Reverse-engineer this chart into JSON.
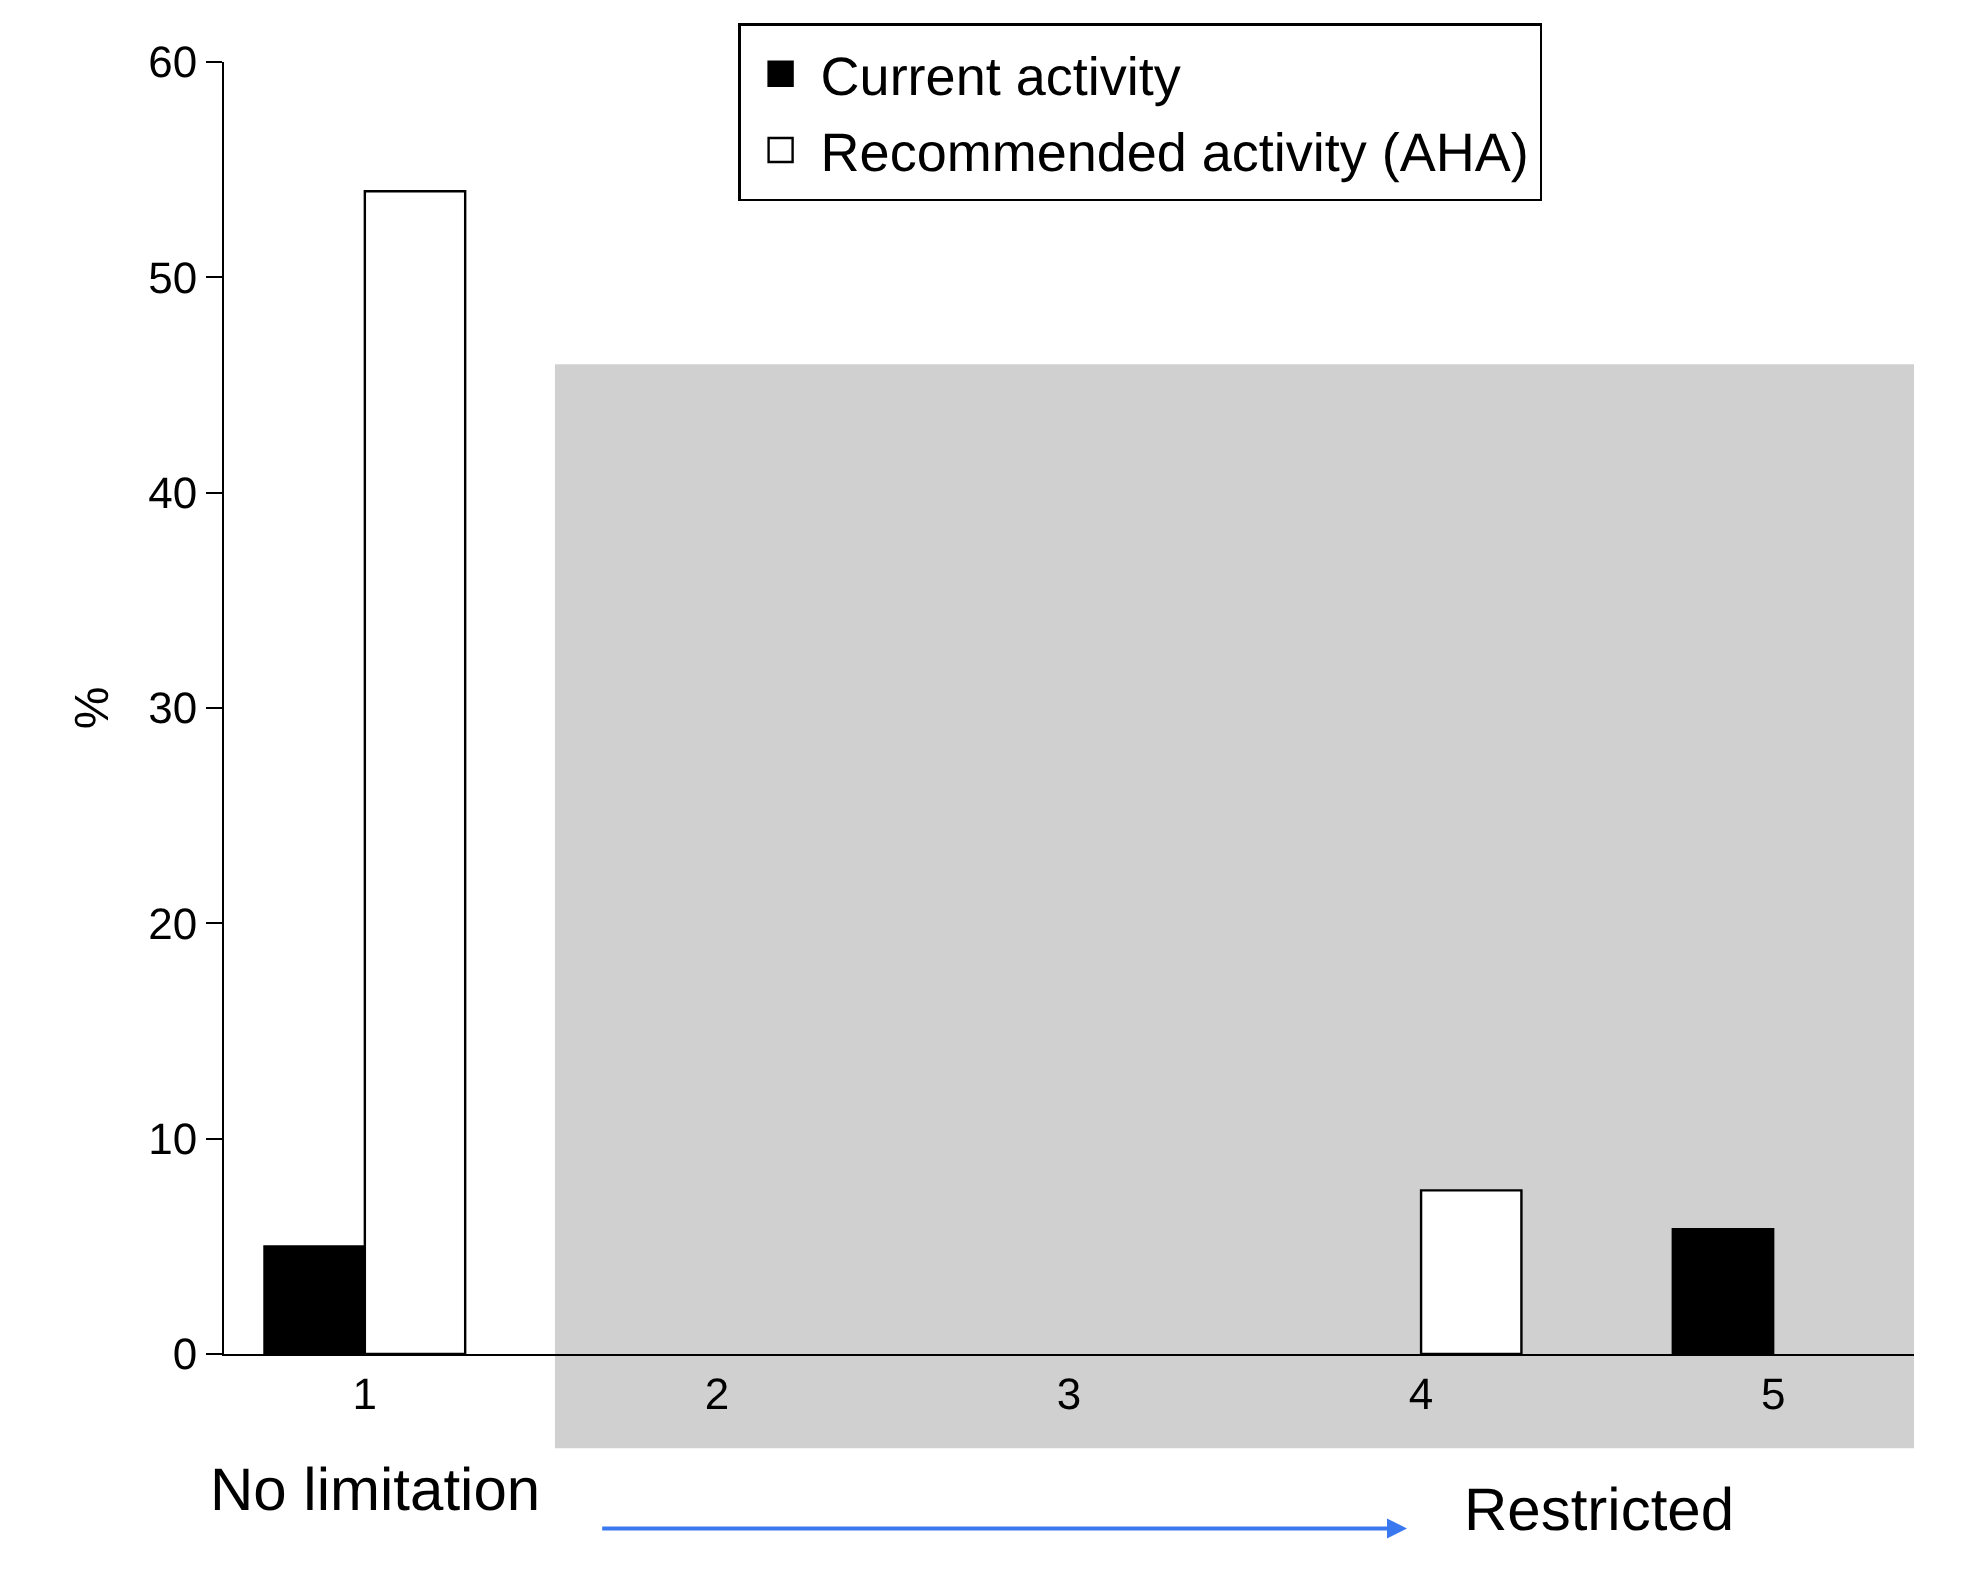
{
  "chart_data": {
    "type": "bar",
    "categories": [
      "1",
      "2",
      "3",
      "4",
      "5"
    ],
    "series": [
      {
        "name": "Current activity",
        "color": "#000000",
        "values": [
          5,
          null,
          null,
          null,
          5.8
        ]
      },
      {
        "name": "Recommended activity (AHA)",
        "color": "#ffffff",
        "values": [
          54,
          null,
          null,
          7.6,
          0
        ]
      }
    ],
    "ylabel": "%",
    "ylim": [
      0,
      60
    ],
    "yticks": [
      0,
      10,
      20,
      30,
      40,
      50,
      60
    ],
    "grid": false,
    "legend": "top right",
    "bands": [
      {
        "axis": "x",
        "from": "2",
        "to": "5",
        "color": "#d0d0d0"
      }
    ],
    "annotations": [
      "No limitation",
      "Restricted"
    ]
  }
}
